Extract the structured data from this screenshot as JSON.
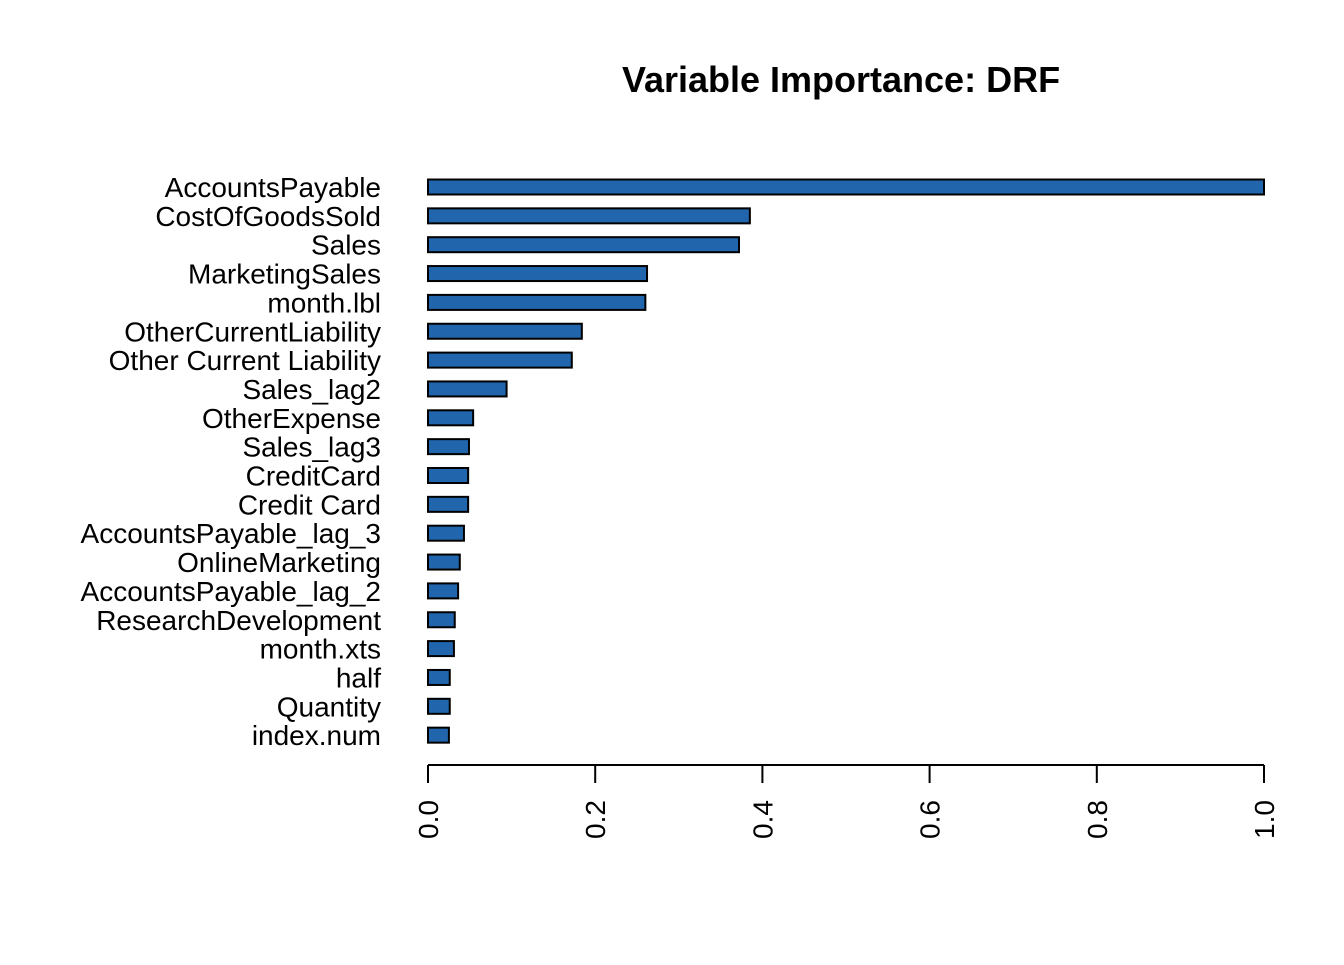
{
  "chart_data": {
    "type": "bar",
    "orientation": "horizontal",
    "title": "Variable Importance: DRF",
    "xlabel": "",
    "ylabel": "",
    "xlim": [
      0,
      1
    ],
    "grid": false,
    "bar_color": "#2166ac",
    "bar_border_color": "#000000",
    "categories": [
      "AccountsPayable",
      "CostOfGoodsSold",
      "Sales",
      "MarketingSales",
      "month.lbl",
      "OtherCurrentLiability",
      "Other Current Liability",
      "Sales_lag2",
      "OtherExpense",
      "Sales_lag3",
      "CreditCard",
      "Credit Card",
      "AccountsPayable_lag_3",
      "OnlineMarketing",
      "AccountsPayable_lag_2",
      "ResearchDevelopment",
      "month.xts",
      "half",
      "Quantity",
      "index.num"
    ],
    "values": [
      1.0,
      0.385,
      0.372,
      0.262,
      0.26,
      0.184,
      0.172,
      0.094,
      0.054,
      0.049,
      0.048,
      0.048,
      0.043,
      0.038,
      0.036,
      0.032,
      0.031,
      0.026,
      0.026,
      0.025
    ],
    "xticks": [
      "0.0",
      "0.2",
      "0.4",
      "0.6",
      "0.8",
      "1.0"
    ]
  }
}
